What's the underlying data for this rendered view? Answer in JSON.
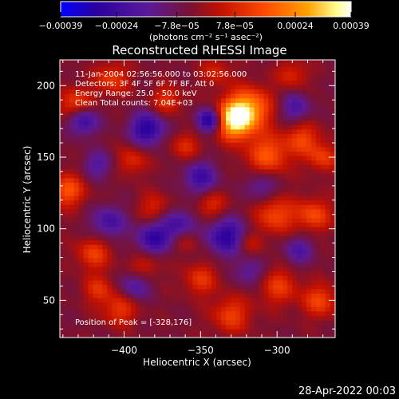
{
  "chart_data": {
    "type": "heatmap",
    "title": "Reconstructed RHESSI Image",
    "xlabel": "Heliocentric X (arcsec)",
    "ylabel": "Heliocentric Y (arcsec)",
    "xlim": [
      -442,
      -262
    ],
    "ylim": [
      24,
      218
    ],
    "x_ticks": [
      -400,
      -350,
      -300
    ],
    "x_tick_labels": [
      "−400",
      "−350",
      "−300"
    ],
    "y_ticks": [
      50,
      100,
      150,
      200
    ],
    "y_tick_labels": [
      "50",
      "100",
      "150",
      "200"
    ],
    "colorbar": {
      "range": [
        -0.00039,
        0.00039
      ],
      "ticks": [
        -0.00039,
        -0.00024,
        -7.8e-05,
        7.8e-05,
        0.00024,
        0.00039
      ],
      "tick_labels": [
        "−0.00039",
        "−0.00024",
        "−7.8e−05",
        "7.8e−05",
        "0.00024",
        "0.00039"
      ],
      "unit": "(photons cm⁻² s⁻¹ asec⁻²)",
      "colormap": [
        "#0000ff",
        "#2a00a0",
        "#5a1a9a",
        "#7a1230",
        "#c21000",
        "#ff4a00",
        "#ffa000",
        "#ffff90",
        "#ffffff"
      ]
    },
    "annotations": [
      "11-Jan-2004 02:56:56.000 to 03:02:56.000",
      "Detectors: 3F 4F 5F 6F 7F 8F, Att 0",
      "Energy Range: 25.0 - 50.0 keV",
      "Clean     Total counts: 7.04E+03",
      "Position of Peak = [-328,176]"
    ],
    "peak": {
      "x": -328,
      "y": 176
    },
    "sources": [
      {
        "x": -328,
        "y": 176,
        "value": 0.00039,
        "r": 9
      },
      {
        "x": -318,
        "y": 185,
        "value": 0.00025,
        "r": 10
      },
      {
        "x": -306,
        "y": 152,
        "value": 0.0002,
        "r": 10
      },
      {
        "x": -301,
        "y": 110,
        "value": 0.00018,
        "r": 9
      },
      {
        "x": -276,
        "y": 110,
        "value": 0.00018,
        "r": 8
      },
      {
        "x": -283,
        "y": 163,
        "value": 0.00016,
        "r": 8
      },
      {
        "x": -270,
        "y": 150,
        "value": 0.00015,
        "r": 7
      },
      {
        "x": -437,
        "y": 127,
        "value": 0.0002,
        "r": 8
      },
      {
        "x": -432,
        "y": 187,
        "value": 0.00018,
        "r": 8
      },
      {
        "x": -408,
        "y": 205,
        "value": 0.00015,
        "r": 8
      },
      {
        "x": -420,
        "y": 83,
        "value": 0.00016,
        "r": 8
      },
      {
        "x": -403,
        "y": 44,
        "value": 0.00015,
        "r": 8
      },
      {
        "x": -395,
        "y": 148,
        "value": 0.00013,
        "r": 7
      },
      {
        "x": -372,
        "y": 190,
        "value": 0.00014,
        "r": 7
      },
      {
        "x": -380,
        "y": 115,
        "value": 0.00012,
        "r": 7
      },
      {
        "x": -350,
        "y": 65,
        "value": 0.00014,
        "r": 8
      },
      {
        "x": -330,
        "y": 40,
        "value": 0.00016,
        "r": 9
      },
      {
        "x": -299,
        "y": 60,
        "value": 0.00015,
        "r": 9
      },
      {
        "x": -272,
        "y": 50,
        "value": 0.00017,
        "r": 8
      },
      {
        "x": -290,
        "y": 208,
        "value": 0.00012,
        "r": 7
      },
      {
        "x": -343,
        "y": 117,
        "value": 0.00013,
        "r": 7
      },
      {
        "x": -340,
        "y": 210,
        "value": 0.00011,
        "r": 7
      },
      {
        "x": -360,
        "y": 92,
        "value": 0.0001,
        "r": 6
      },
      {
        "x": -417,
        "y": 58,
        "value": 0.00013,
        "r": 7
      },
      {
        "x": -386,
        "y": 75,
        "value": 0.00011,
        "r": 7
      },
      {
        "x": -360,
        "y": 158,
        "value": 0.00012,
        "r": 7
      },
      {
        "x": -318,
        "y": 90,
        "value": 0.0001,
        "r": 6
      },
      {
        "x": -385,
        "y": 170,
        "value": -0.00026,
        "r": 8
      },
      {
        "x": -344,
        "y": 176,
        "value": -0.00032,
        "r": 6
      },
      {
        "x": -427,
        "y": 176,
        "value": -0.00024,
        "r": 7
      },
      {
        "x": -333,
        "y": 95,
        "value": -0.00025,
        "r": 9
      },
      {
        "x": -365,
        "y": 103,
        "value": -0.00018,
        "r": 8
      },
      {
        "x": -381,
        "y": 93,
        "value": -0.00022,
        "r": 8
      },
      {
        "x": -350,
        "y": 136,
        "value": -0.0002,
        "r": 8
      },
      {
        "x": -410,
        "y": 105,
        "value": -0.00018,
        "r": 8
      },
      {
        "x": -393,
        "y": 60,
        "value": -0.00015,
        "r": 7
      },
      {
        "x": -288,
        "y": 185,
        "value": -0.00016,
        "r": 7
      },
      {
        "x": -286,
        "y": 85,
        "value": -0.00015,
        "r": 7
      },
      {
        "x": -310,
        "y": 130,
        "value": -0.00014,
        "r": 7
      },
      {
        "x": -417,
        "y": 145,
        "value": -0.00014,
        "r": 7
      },
      {
        "x": -318,
        "y": 70,
        "value": -0.00013,
        "r": 7
      }
    ]
  },
  "footer": {
    "date": "28-Apr-2022 00:03"
  }
}
